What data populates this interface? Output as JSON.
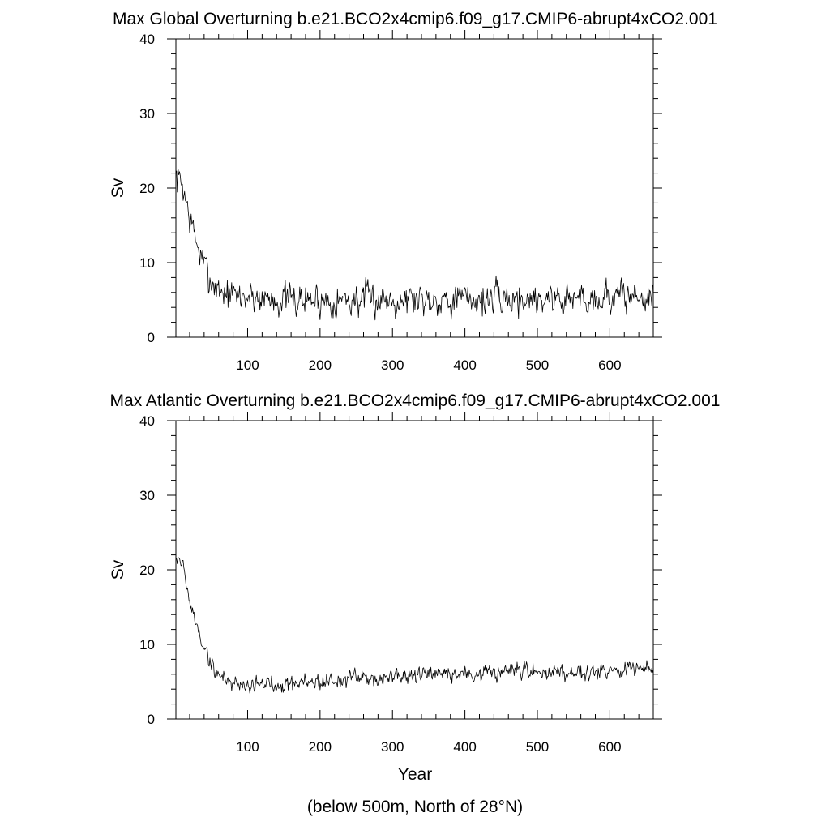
{
  "chart_data": [
    {
      "type": "line",
      "title": "Max Global Overturning b.e21.BCO2x4cmip6.f09_g17.CMIP6-abrupt4xCO2.001",
      "xlabel": "",
      "ylabel": "Sv",
      "xlim": [
        1,
        660
      ],
      "ylim": [
        0,
        40
      ],
      "x_ticks": [
        100,
        200,
        300,
        400,
        500,
        600
      ],
      "y_ticks": [
        0,
        10,
        20,
        30,
        40
      ],
      "grid": false,
      "legend": "none",
      "line_color": "#333333",
      "series": [
        {
          "x": [
            1,
            10,
            20,
            30,
            40,
            50,
            60,
            70,
            80,
            100,
            120,
            150,
            200,
            250,
            300,
            350,
            400,
            450,
            500,
            550,
            600,
            660
          ],
          "y": [
            21.5,
            20.5,
            16,
            12.5,
            9.5,
            7.5,
            6.5,
            6,
            5.5,
            5.5,
            5.3,
            5,
            5,
            5,
            5.2,
            5.2,
            5.1,
            5.1,
            5.2,
            5.2,
            5.4,
            5.5
          ]
        }
      ]
    },
    {
      "type": "line",
      "title": "Max Atlantic Overturning b.e21.BCO2x4cmip6.f09_g17.CMIP6-abrupt4xCO2.001",
      "xlabel": "Year",
      "ylabel": "Sv",
      "xlim": [
        1,
        660
      ],
      "ylim": [
        0,
        40
      ],
      "x_ticks": [
        100,
        200,
        300,
        400,
        500,
        600
      ],
      "y_ticks": [
        0,
        10,
        20,
        30,
        40
      ],
      "grid": false,
      "legend": "none",
      "line_color": "#333333",
      "series": [
        {
          "x": [
            1,
            10,
            20,
            30,
            40,
            50,
            60,
            70,
            80,
            90,
            100,
            125,
            150,
            200,
            250,
            300,
            350,
            400,
            450,
            500,
            550,
            600,
            660
          ],
          "y": [
            22,
            21,
            15.5,
            12.5,
            9.5,
            7.2,
            6,
            5.2,
            4.9,
            4.7,
            4.6,
            4.7,
            4.8,
            5,
            5.4,
            5.6,
            5.8,
            6,
            6.1,
            6.3,
            6.4,
            6.6,
            6.7
          ]
        }
      ]
    }
  ],
  "footnote": "(below 500m, North of 28°N)"
}
